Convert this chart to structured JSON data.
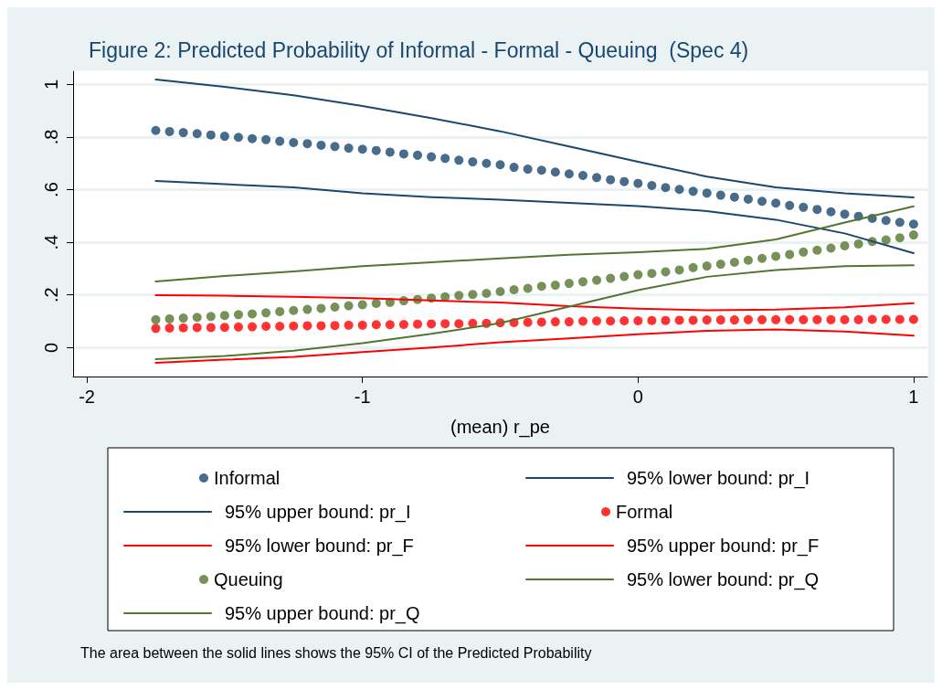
{
  "chart_data": {
    "type": "scatter",
    "title": "Figure 2: Predicted Probability of Informal - Formal - Queuing  (Spec 4)",
    "xlabel": "(mean) r_pe",
    "annotations": [
      "The area between the solid lines shows the 95% CI of the Predicted Probability"
    ],
    "x": [
      -1.75,
      -1.7,
      -1.65,
      -1.6,
      -1.55,
      -1.5,
      -1.45,
      -1.4,
      -1.35,
      -1.3,
      -1.25,
      -1.2,
      -1.15,
      -1.1,
      -1.05,
      -1,
      -0.95,
      -0.9,
      -0.85,
      -0.8,
      -0.75,
      -0.7,
      -0.65,
      -0.6,
      -0.55,
      -0.5,
      -0.45,
      -0.4,
      -0.35,
      -0.3,
      -0.25,
      -0.2,
      -0.15,
      -0.1,
      -0.05,
      0,
      0.05,
      0.1,
      0.15,
      0.2,
      0.25,
      0.3,
      0.35,
      0.4,
      0.45,
      0.5,
      0.55,
      0.6,
      0.65,
      0.7,
      0.75,
      0.8,
      0.85,
      0.9,
      0.95,
      1
    ],
    "series": [
      {
        "name": "Informal",
        "color": "#1a476f",
        "values": [
          0.825,
          0.821,
          0.817,
          0.813,
          0.808,
          0.803,
          0.799,
          0.794,
          0.79,
          0.784,
          0.779,
          0.775,
          0.769,
          0.764,
          0.758,
          0.754,
          0.749,
          0.743,
          0.736,
          0.731,
          0.725,
          0.719,
          0.712,
          0.706,
          0.7,
          0.695,
          0.685,
          0.678,
          0.674,
          0.667,
          0.66,
          0.654,
          0.646,
          0.638,
          0.631,
          0.624,
          0.616,
          0.608,
          0.601,
          0.594,
          0.587,
          0.579,
          0.572,
          0.564,
          0.556,
          0.549,
          0.54,
          0.533,
          0.525,
          0.516,
          0.507,
          0.499,
          0.491,
          0.483,
          0.476,
          0.469
        ]
      },
      {
        "name": "95% lower bound: pr_I",
        "type": "line",
        "marker": "none",
        "color": "#1a476f",
        "x": [
          -1.75,
          -1.5,
          -1.25,
          -1,
          -0.75,
          -0.5,
          -0.25,
          0,
          0.25,
          0.5,
          0.75,
          1
        ],
        "values": [
          1.019,
          0.991,
          0.959,
          0.918,
          0.872,
          0.822,
          0.764,
          0.706,
          0.65,
          0.609,
          0.586,
          0.571
        ]
      },
      {
        "name": "95% upper bound: pr_I",
        "type": "line",
        "marker": "none",
        "color": "#1a476f",
        "x": [
          -1.75,
          -1.5,
          -1.25,
          -1,
          -0.75,
          -0.5,
          -0.25,
          0,
          0.25,
          0.5,
          0.75,
          1
        ],
        "values": [
          0.633,
          0.621,
          0.609,
          0.586,
          0.572,
          0.562,
          0.55,
          0.538,
          0.519,
          0.486,
          0.434,
          0.359
        ]
      },
      {
        "name": "Formal",
        "color": "#ff0000",
        "values": [
          0.073,
          0.074,
          0.075,
          0.076,
          0.076,
          0.077,
          0.078,
          0.079,
          0.081,
          0.081,
          0.082,
          0.083,
          0.083,
          0.084,
          0.085,
          0.085,
          0.087,
          0.087,
          0.088,
          0.089,
          0.09,
          0.091,
          0.091,
          0.092,
          0.092,
          0.094,
          0.095,
          0.096,
          0.097,
          0.098,
          0.098,
          0.1,
          0.101,
          0.101,
          0.102,
          0.102,
          0.103,
          0.103,
          0.104,
          0.104,
          0.105,
          0.105,
          0.105,
          0.106,
          0.106,
          0.106,
          0.106,
          0.106,
          0.106,
          0.106,
          0.106,
          0.106,
          0.107,
          0.107,
          0.107,
          0.107
        ]
      },
      {
        "name": "95% lower bound: pr_F",
        "type": "line",
        "marker": "none",
        "color": "#ff0000",
        "x": [
          -1.75,
          -1.5,
          -1.25,
          -1,
          -0.75,
          -0.5,
          -0.25,
          0,
          0.25,
          0.5,
          0.75,
          1
        ],
        "values": [
          0.199,
          0.197,
          0.193,
          0.188,
          0.179,
          0.171,
          0.157,
          0.148,
          0.142,
          0.144,
          0.153,
          0.169
        ]
      },
      {
        "name": "95% upper bound: pr_F",
        "type": "line",
        "marker": "none",
        "color": "#ff0000",
        "x": [
          -1.75,
          -1.5,
          -1.25,
          -1,
          -0.75,
          -0.5,
          -0.25,
          0,
          0.25,
          0.5,
          0.75,
          1
        ],
        "values": [
          -0.058,
          -0.046,
          -0.035,
          -0.017,
          0,
          0.02,
          0.035,
          0.051,
          0.064,
          0.069,
          0.061,
          0.045
        ]
      },
      {
        "name": "Queuing",
        "color": "#55752f",
        "values": [
          0.106,
          0.109,
          0.112,
          0.115,
          0.118,
          0.122,
          0.125,
          0.128,
          0.132,
          0.137,
          0.141,
          0.145,
          0.149,
          0.154,
          0.159,
          0.163,
          0.168,
          0.172,
          0.178,
          0.183,
          0.188,
          0.193,
          0.198,
          0.202,
          0.206,
          0.213,
          0.22,
          0.225,
          0.233,
          0.237,
          0.244,
          0.25,
          0.256,
          0.263,
          0.27,
          0.277,
          0.282,
          0.288,
          0.295,
          0.304,
          0.31,
          0.317,
          0.324,
          0.332,
          0.339,
          0.347,
          0.354,
          0.363,
          0.37,
          0.378,
          0.387,
          0.394,
          0.403,
          0.409,
          0.417,
          0.428
        ]
      },
      {
        "name": "95% lower bound: pr_Q",
        "type": "line",
        "marker": "none",
        "color": "#55752f",
        "x": [
          -1.75,
          -1.5,
          -1.25,
          -1,
          -0.75,
          -0.5,
          -0.25,
          0,
          0.25,
          0.5,
          0.75,
          1
        ],
        "values": [
          0.251,
          0.272,
          0.289,
          0.309,
          0.324,
          0.339,
          0.353,
          0.362,
          0.375,
          0.411,
          0.475,
          0.537
        ]
      },
      {
        "name": "95% upper bound: pr_Q",
        "type": "line",
        "marker": "none",
        "color": "#55752f",
        "x": [
          -1.75,
          -1.5,
          -1.25,
          -1,
          -0.75,
          -0.5,
          -0.25,
          0,
          0.25,
          0.5,
          0.75,
          1
        ],
        "values": [
          -0.044,
          -0.032,
          -0.012,
          0.017,
          0.052,
          0.093,
          0.156,
          0.218,
          0.269,
          0.295,
          0.309,
          0.313
        ]
      }
    ],
    "xlim": [
      -2.05,
      1.05
    ],
    "xticks": [
      -2,
      -1,
      0,
      1
    ],
    "ylim": [
      -0.11,
      1.05
    ],
    "yticks": [
      {
        "value": 0,
        "label": "0"
      },
      {
        "value": 0.2,
        "label": ".2"
      },
      {
        "value": 0.4,
        "label": ".4"
      },
      {
        "value": 0.6,
        "label": ".6"
      },
      {
        "value": 0.8,
        "label": ".8"
      },
      {
        "value": 1,
        "label": "1"
      }
    ],
    "grid": "y",
    "legend": "bottom",
    "marker": "circle",
    "line_style": "solid"
  }
}
